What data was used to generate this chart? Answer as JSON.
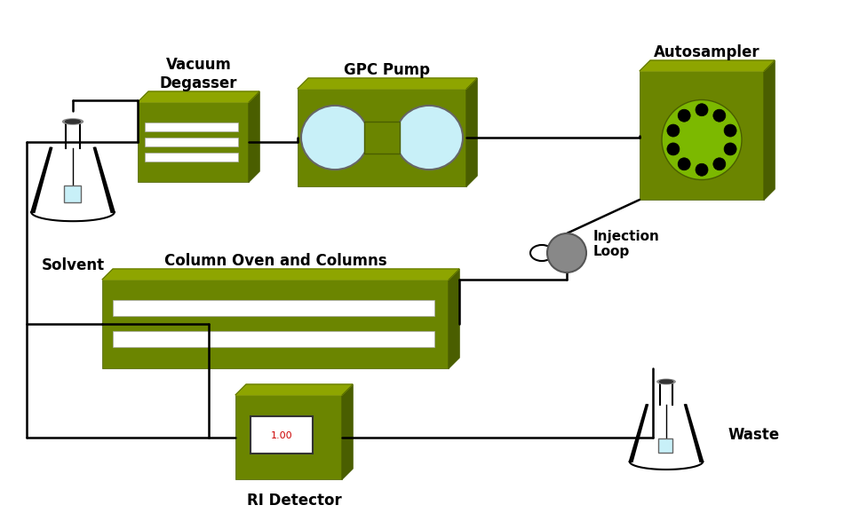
{
  "title": "",
  "bg_color": "#ffffff",
  "dark_green": "#556B00",
  "light_green": "#7CB900",
  "mid_green": "#6B8E00",
  "light_blue": "#C8F0F8",
  "gray": "#888888",
  "black": "#000000",
  "white": "#ffffff",
  "labels": {
    "solvent": "Solvent",
    "vacuum": "Vacuum\nDegasser",
    "pump": "GPC Pump",
    "autosampler": "Autosampler",
    "column_oven": "Column Oven and Columns",
    "injection_loop": "Injection\nLoop",
    "ri_detector": "RI Detector",
    "waste": "Waste"
  }
}
